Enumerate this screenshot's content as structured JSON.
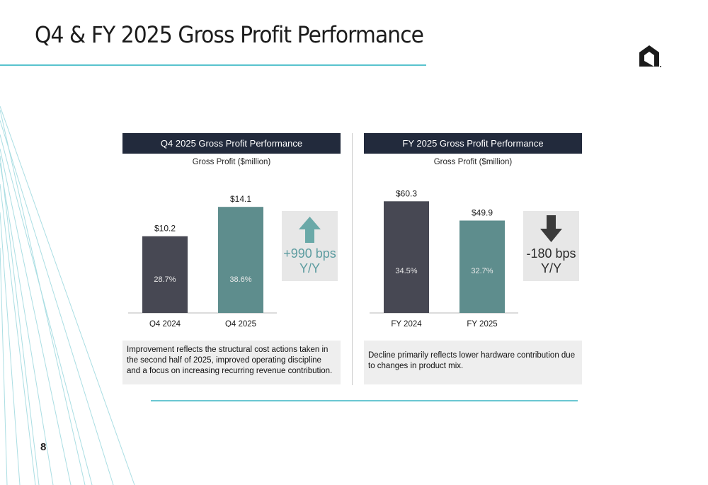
{
  "slide": {
    "title": "Q4 & FY 2025 Gross Profit Performance",
    "page_number": "8"
  },
  "colors": {
    "accent_teal": "#59c3ce",
    "header_navy": "#222a3c",
    "bar_dark": "#474853",
    "bar_teal": "#5e8d8d",
    "up_arrow": "#6aa9a8",
    "down_arrow": "#3b3b3b"
  },
  "icons": {
    "logo": "company-logo-icon",
    "up": "arrow-up-icon",
    "down": "arrow-down-icon"
  },
  "chart_data": [
    {
      "type": "bar",
      "title": "Q4 2025 Gross Profit Performance",
      "subtitle": "Gross Profit ($million)",
      "categories": [
        "Q4 2024",
        "Q4 2025"
      ],
      "values": [
        10.2,
        14.1
      ],
      "value_labels": [
        "$10.2",
        "$14.1"
      ],
      "margins": [
        "28.7%",
        "38.6%"
      ],
      "bar_colors": [
        "#474853",
        "#5e8d8d"
      ],
      "ylim": [
        0,
        16
      ],
      "change": {
        "direction": "up",
        "line1": "+990 bps",
        "line2": "Y/Y"
      },
      "note": "Improvement reflects the structural cost actions taken in the second half of 2025, improved operating discipline and a focus on increasing recurring revenue contribution."
    },
    {
      "type": "bar",
      "title": "FY 2025 Gross Profit Performance",
      "subtitle": "Gross Profit ($million)",
      "categories": [
        "FY 2024",
        "FY 2025"
      ],
      "values": [
        60.3,
        49.9
      ],
      "value_labels": [
        "$60.3",
        "$49.9"
      ],
      "margins": [
        "34.5%",
        "32.7%"
      ],
      "bar_colors": [
        "#474853",
        "#5e8d8d"
      ],
      "ylim": [
        0,
        65
      ],
      "change": {
        "direction": "down",
        "line1": "-180 bps",
        "line2": "Y/Y"
      },
      "note": "Decline primarily reflects lower hardware contribution due to changes in product mix."
    }
  ]
}
